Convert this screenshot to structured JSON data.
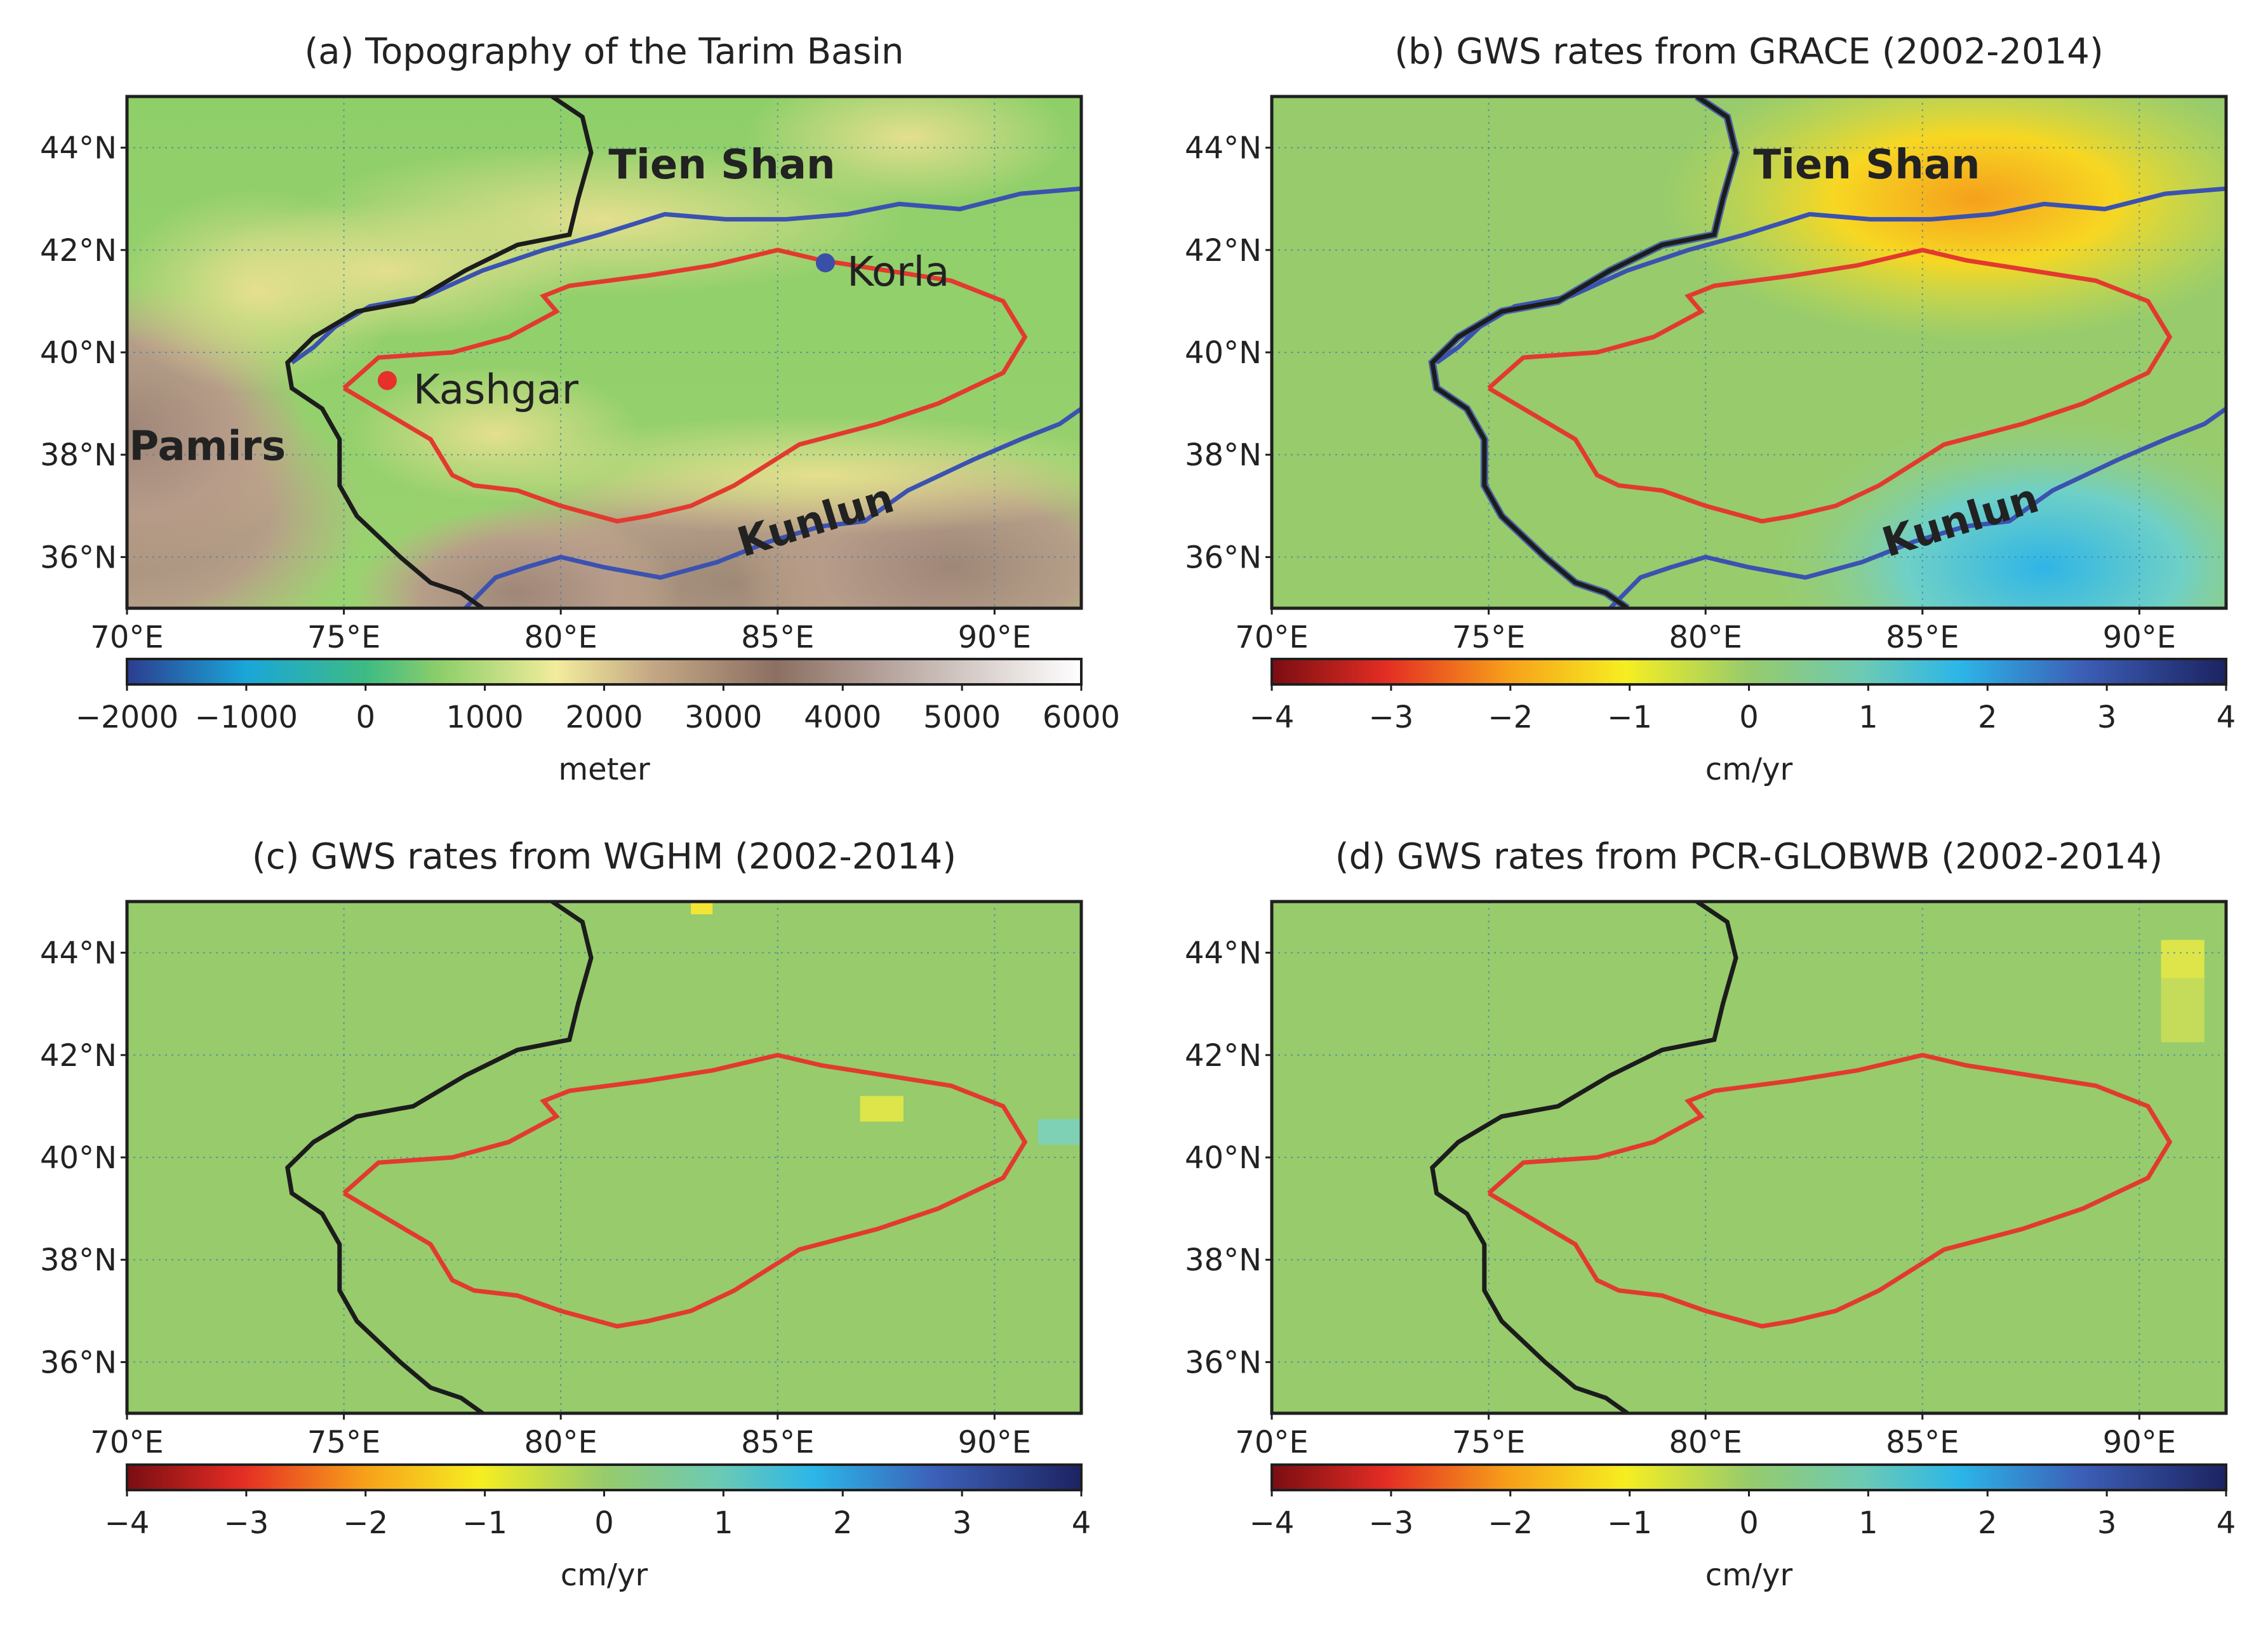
{
  "figure": {
    "panels": [
      {
        "id": "a",
        "title": "(a) Topography of the Tarim Basin",
        "colorbar": {
          "unit": "meter",
          "ticks": [
            "−2000",
            "−1000",
            "0",
            "1000",
            "2000",
            "3000",
            "4000",
            "5000",
            "6000"
          ],
          "values": [
            -2000,
            -1000,
            0,
            1000,
            2000,
            3000,
            4000,
            5000,
            6000
          ]
        },
        "labels": {
          "tien_shan": "Tien Shan",
          "kunlun": "Kunlun",
          "pamirs": "Pamirs",
          "korla": "Korla",
          "kashgar": "Kashgar"
        }
      },
      {
        "id": "b",
        "title": "(b) GWS rates from GRACE (2002-2014)",
        "colorbar": {
          "unit": "cm/yr",
          "ticks": [
            "−4",
            "−3",
            "−2",
            "−1",
            "0",
            "1",
            "2",
            "3",
            "4"
          ],
          "values": [
            -4,
            -3,
            -2,
            -1,
            0,
            1,
            2,
            3,
            4
          ]
        },
        "labels": {
          "tien_shan": "Tien Shan",
          "kunlun": "Kunlun"
        }
      },
      {
        "id": "c",
        "title": "(c) GWS rates from WGHM (2002-2014)",
        "colorbar": {
          "unit": "cm/yr",
          "ticks": [
            "−4",
            "−3",
            "−2",
            "−1",
            "0",
            "1",
            "2",
            "3",
            "4"
          ],
          "values": [
            -4,
            -3,
            -2,
            -1,
            0,
            1,
            2,
            3,
            4
          ]
        }
      },
      {
        "id": "d",
        "title": "(d) GWS rates from PCR-GLOBWB (2002-2014)",
        "colorbar": {
          "unit": "cm/yr",
          "ticks": [
            "−4",
            "−3",
            "−2",
            "−1",
            "0",
            "1",
            "2",
            "3",
            "4"
          ],
          "values": [
            -4,
            -3,
            -2,
            -1,
            0,
            1,
            2,
            3,
            4
          ]
        }
      }
    ],
    "lon_ticks": [
      "70°E",
      "75°E",
      "80°E",
      "85°E",
      "90°E"
    ],
    "lat_ticks": [
      "44°N",
      "42°N",
      "40°N",
      "38°N",
      "36°N"
    ],
    "extent": {
      "lon_min": 70,
      "lon_max": 92,
      "lat_min": 35,
      "lat_max": 45
    }
  },
  "chart_data": [
    {
      "type": "heatmap",
      "title": "(a) Topography of the Tarim Basin",
      "variable": "elevation",
      "unit": "meter",
      "xlim": [
        70,
        92
      ],
      "ylim": [
        35,
        45
      ],
      "xticks": [
        70,
        75,
        80,
        85,
        90
      ],
      "yticks": [
        36,
        38,
        40,
        42,
        44
      ],
      "colorbar_range": [
        -2000,
        6000
      ],
      "points": [
        {
          "name": "Kashgar",
          "lon": 76.0,
          "lat": 39.45,
          "color": "#e8302a"
        },
        {
          "name": "Korla",
          "lon": 86.1,
          "lat": 41.75,
          "color": "#3a4fa8"
        }
      ],
      "region_labels": [
        {
          "text": "Tien Shan",
          "lon": 81.0,
          "lat": 43.6
        },
        {
          "text": "Kunlun",
          "lon": 84.0,
          "lat": 36.5
        },
        {
          "text": "Pamirs",
          "lon": 70.0,
          "lat": 38.2
        }
      ]
    },
    {
      "type": "heatmap",
      "title": "(b) GWS rates from GRACE (2002-2014)",
      "variable": "groundwater storage trend",
      "unit": "cm/yr",
      "xlim": [
        70,
        92
      ],
      "ylim": [
        35,
        45
      ],
      "colorbar_range": [
        -4,
        4
      ],
      "highlights": [
        {
          "region": "Tien Shan / northern basin",
          "lon_range": [
            81,
            92
          ],
          "lat_range": [
            41,
            45
          ],
          "value": -2.0
        },
        {
          "region": "Kunlun / southeast",
          "lon_range": [
            84,
            92
          ],
          "lat_range": [
            35,
            38
          ],
          "value": 1.4
        }
      ]
    },
    {
      "type": "heatmap",
      "title": "(c) GWS rates from WGHM (2002-2014)",
      "variable": "groundwater storage trend",
      "unit": "cm/yr",
      "xlim": [
        70,
        92
      ],
      "ylim": [
        35,
        45
      ],
      "colorbar_range": [
        -4,
        4
      ],
      "highlights": [
        {
          "lon_range": [
            83.0,
            83.5
          ],
          "lat_range": [
            44.75,
            45.0
          ],
          "value": -1.6
        },
        {
          "lon_range": [
            86.9,
            87.9
          ],
          "lat_range": [
            40.7,
            41.2
          ],
          "value": -0.9
        },
        {
          "lon_range": [
            91.0,
            92.0
          ],
          "lat_range": [
            40.25,
            40.75
          ],
          "value": 0.8
        }
      ]
    },
    {
      "type": "heatmap",
      "title": "(d) GWS rates from PCR-GLOBWB (2002-2014)",
      "variable": "groundwater storage trend",
      "unit": "cm/yr",
      "xlim": [
        70,
        92
      ],
      "ylim": [
        35,
        45
      ],
      "colorbar_range": [
        -4,
        4
      ],
      "highlights": [
        {
          "lon_range": [
            90.5,
            91.5
          ],
          "lat_range": [
            43.5,
            44.25
          ],
          "value": -1.0
        },
        {
          "lon_range": [
            90.5,
            91.5
          ],
          "lat_range": [
            42.25,
            43.5
          ],
          "value": -0.4
        }
      ]
    }
  ]
}
